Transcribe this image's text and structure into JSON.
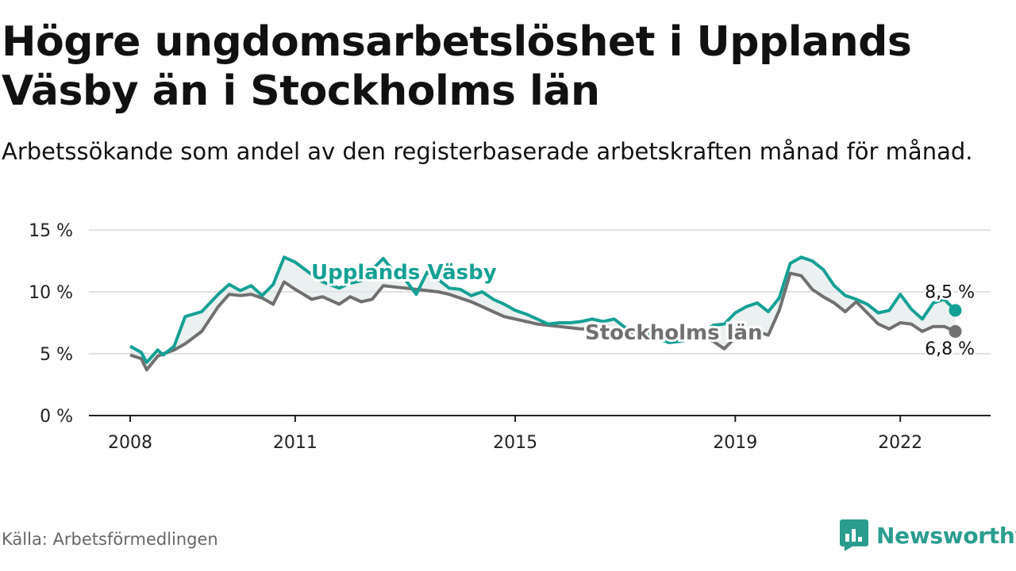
{
  "title": "Högre ungdomsarbetslöshet i Upplands Väsby än i Stockholms län",
  "subtitle": "Arbetssökande som andel av den registerbaserade arbetskraften månad för månad.",
  "source": "Källa: Arbetsförmedlingen",
  "brand": "Newsworthy",
  "colors": {
    "upplands": "#14a095",
    "stockholm": "#707070",
    "grid": "#d6d6d6",
    "axis": "#222222",
    "brand": "#2a9d8f"
  },
  "chart_data": {
    "type": "line",
    "title": "Högre ungdomsarbetslöshet i Upplands Väsby än i Stockholms län",
    "xlabel": "",
    "ylabel": "",
    "ylim": [
      0,
      15
    ],
    "xlim": [
      2008,
      2023.6
    ],
    "yticks": [
      0,
      5,
      10,
      15
    ],
    "ytick_labels": [
      "0 %",
      "5 %",
      "10 %",
      "15 %"
    ],
    "xticks": [
      2008,
      2011,
      2015,
      2019,
      2022
    ],
    "xtick_labels": [
      "2008",
      "2011",
      "2015",
      "2019",
      "2022"
    ],
    "grid": true,
    "series": [
      {
        "name": "Upplands Väsby",
        "label": "Upplands Väsby",
        "end_label": "8,5 %",
        "x": [
          2008.0,
          2008.2,
          2008.3,
          2008.5,
          2008.6,
          2008.8,
          2009.0,
          2009.3,
          2009.6,
          2009.8,
          2010.0,
          2010.2,
          2010.4,
          2010.6,
          2010.8,
          2011.0,
          2011.3,
          2011.5,
          2011.8,
          2012.0,
          2012.2,
          2012.4,
          2012.6,
          2012.8,
          2013.0,
          2013.2,
          2013.4,
          2013.6,
          2013.8,
          2014.0,
          2014.2,
          2014.4,
          2014.6,
          2014.8,
          2015.0,
          2015.2,
          2015.4,
          2015.6,
          2015.8,
          2016.0,
          2016.2,
          2016.4,
          2016.6,
          2016.8,
          2017.0,
          2017.2,
          2017.4,
          2017.6,
          2017.8,
          2018.0,
          2018.2,
          2018.4,
          2018.6,
          2018.8,
          2019.0,
          2019.2,
          2019.4,
          2019.6,
          2019.8,
          2020.0,
          2020.2,
          2020.4,
          2020.6,
          2020.8,
          2021.0,
          2021.2,
          2021.4,
          2021.6,
          2021.8,
          2022.0,
          2022.2,
          2022.4,
          2022.6,
          2022.8,
          2023.0
        ],
        "values": [
          5.6,
          5.1,
          4.3,
          5.3,
          4.9,
          5.6,
          8.0,
          8.4,
          9.8,
          10.6,
          10.1,
          10.5,
          9.7,
          10.6,
          12.8,
          12.4,
          11.4,
          10.8,
          10.3,
          10.7,
          10.9,
          11.8,
          12.7,
          11.6,
          11.0,
          9.8,
          11.6,
          11.0,
          10.3,
          10.2,
          9.7,
          10.0,
          9.4,
          9.0,
          8.5,
          8.2,
          7.8,
          7.4,
          7.5,
          7.5,
          7.6,
          7.8,
          7.6,
          7.8,
          7.1,
          7.0,
          6.6,
          6.2,
          5.9,
          6.0,
          6.2,
          6.6,
          7.3,
          7.4,
          8.3,
          8.8,
          9.1,
          8.4,
          9.5,
          12.3,
          12.8,
          12.5,
          11.8,
          10.5,
          9.7,
          9.4,
          9.0,
          8.3,
          8.5,
          9.8,
          8.6,
          7.8,
          9.1,
          9.4,
          8.5
        ]
      },
      {
        "name": "Stockholms län",
        "label": "Stockholms län",
        "end_label": "6,8 %",
        "x": [
          2008.0,
          2008.2,
          2008.3,
          2008.5,
          2008.6,
          2008.8,
          2009.0,
          2009.3,
          2009.6,
          2009.8,
          2010.0,
          2010.2,
          2010.4,
          2010.6,
          2010.8,
          2011.0,
          2011.3,
          2011.5,
          2011.8,
          2012.0,
          2012.2,
          2012.4,
          2012.6,
          2012.8,
          2013.0,
          2013.2,
          2013.4,
          2013.6,
          2013.8,
          2014.0,
          2014.2,
          2014.4,
          2014.6,
          2014.8,
          2015.0,
          2015.2,
          2015.4,
          2015.6,
          2015.8,
          2016.0,
          2016.2,
          2016.4,
          2016.6,
          2016.8,
          2017.0,
          2017.2,
          2017.4,
          2017.6,
          2017.8,
          2018.0,
          2018.2,
          2018.4,
          2018.6,
          2018.8,
          2019.0,
          2019.2,
          2019.4,
          2019.6,
          2019.8,
          2020.0,
          2020.2,
          2020.4,
          2020.6,
          2020.8,
          2021.0,
          2021.2,
          2021.4,
          2021.6,
          2021.8,
          2022.0,
          2022.2,
          2022.4,
          2022.6,
          2022.8,
          2023.0
        ],
        "values": [
          4.9,
          4.6,
          3.7,
          4.8,
          5.0,
          5.3,
          5.8,
          6.8,
          8.8,
          9.8,
          9.7,
          9.8,
          9.5,
          9.0,
          10.8,
          10.2,
          9.4,
          9.6,
          9.0,
          9.6,
          9.2,
          9.4,
          10.5,
          10.4,
          10.3,
          10.2,
          10.1,
          10.0,
          9.8,
          9.5,
          9.2,
          8.8,
          8.4,
          8.0,
          7.8,
          7.6,
          7.4,
          7.3,
          7.2,
          7.1,
          7.0,
          7.0,
          7.0,
          6.9,
          6.8,
          6.7,
          6.5,
          6.3,
          6.2,
          6.1,
          6.2,
          6.3,
          6.0,
          5.4,
          6.3,
          6.6,
          6.8,
          6.5,
          8.5,
          11.5,
          11.3,
          10.2,
          9.6,
          9.1,
          8.4,
          9.2,
          8.3,
          7.4,
          7.0,
          7.5,
          7.4,
          6.8,
          7.2,
          7.2,
          6.8
        ]
      }
    ]
  }
}
